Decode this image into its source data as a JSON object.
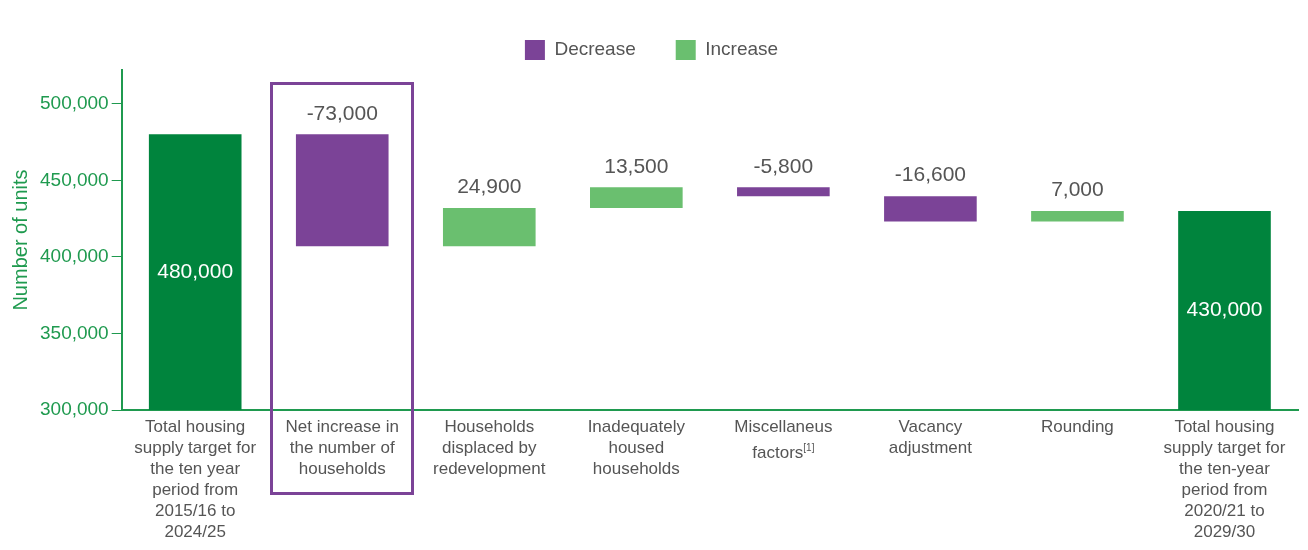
{
  "chart_data": {
    "type": "bar",
    "ylabel": "Number of units",
    "categories": [
      "Total housing supply target for the ten year period from 2015/16 to 2024/25",
      "Net increase in the number of households",
      "Households displaced by redevelopment",
      "Inadequately housed households",
      "Miscellaneus factors$^{[1]}$",
      "Vacancy adjustment",
      "Rounding",
      "Total housing supply target for the ten-year period from 2020/21 to 2029/30"
    ],
    "series": [
      {
        "color": "#00843d",
        "values": [
          480000,
          null,
          null,
          null,
          null,
          null,
          null,
          430000
        ],
        "value_labels": [
          "480,000",
          null,
          null,
          null,
          null,
          null,
          null,
          "430,000"
        ]
      },
      {
        "name": "Decrease",
        "color": "#7b4397",
        "values": [
          null,
          -73000,
          null,
          null,
          -5800,
          -16600,
          null,
          null
        ],
        "base": [
          null,
          480000,
          null,
          null,
          445400,
          439600,
          null,
          null
        ],
        "value_labels": [
          null,
          "-73,000",
          null,
          null,
          "-5,800",
          "-16,600",
          null,
          null
        ]
      },
      {
        "name": "Increase",
        "color": "#6abf6f",
        "values": [
          null,
          null,
          24900,
          13500,
          null,
          null,
          7000,
          null
        ],
        "base": [
          null,
          null,
          407000,
          431900,
          null,
          null,
          423000,
          null
        ],
        "value_labels": [
          null,
          null,
          "24,900",
          "13,500",
          null,
          null,
          "7,000",
          null
        ]
      }
    ],
    "ylim": [
      300000,
      522000
    ],
    "yticks": [
      {
        "value": 300000,
        "label": "300,000"
      },
      {
        "value": 350000,
        "label": "350,000"
      },
      {
        "value": 400000,
        "label": "400,000"
      },
      {
        "value": 450000,
        "label": "450,000"
      },
      {
        "value": 500000,
        "label": "500,000"
      }
    ],
    "grid": false,
    "legend": "top"
  }
}
